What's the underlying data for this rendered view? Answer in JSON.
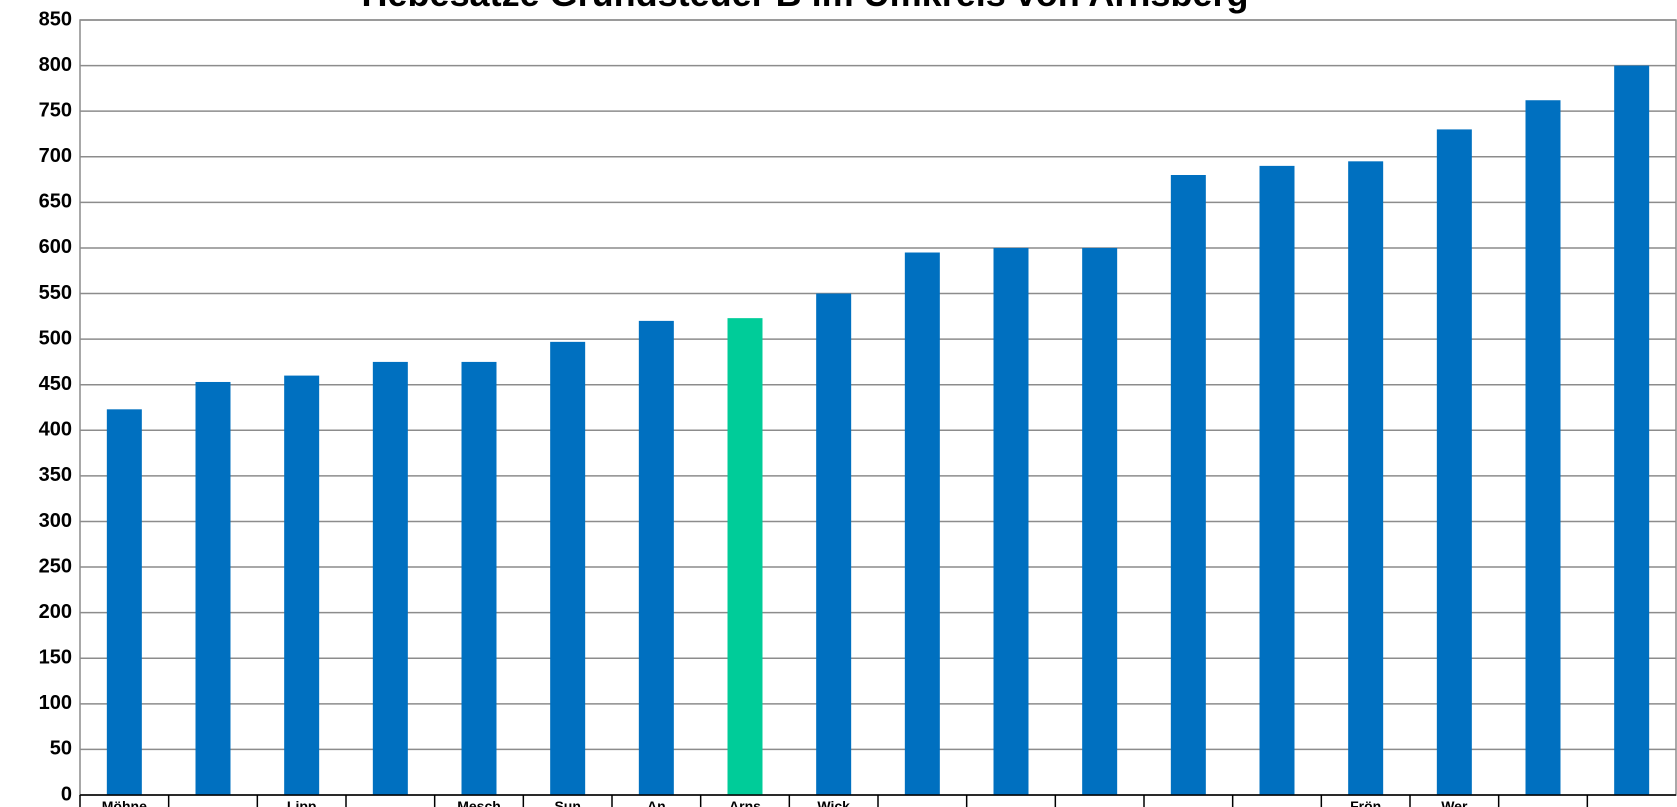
{
  "chart_data": {
    "type": "bar",
    "title": "Hebesätze Grundsteuer B im Umkreis von Arnsberg",
    "categories": [
      "Möhne",
      null,
      "Lipp",
      null,
      "Mesch",
      "Sun",
      "An",
      "Arns",
      "Wick",
      null,
      null,
      null,
      null,
      null,
      "Frön",
      "Wer",
      null,
      null
    ],
    "values": [
      423,
      453,
      460,
      475,
      475,
      497,
      520,
      523,
      550,
      595,
      600,
      600,
      680,
      690,
      695,
      730,
      762,
      800
    ],
    "colors": [
      "#0070c0",
      "#0070c0",
      "#0070c0",
      "#0070c0",
      "#0070c0",
      "#0070c0",
      "#0070c0",
      "#00cc99",
      "#0070c0",
      "#0070c0",
      "#0070c0",
      "#0070c0",
      "#0070c0",
      "#0070c0",
      "#0070c0",
      "#0070c0",
      "#0070c0",
      "#0070c0"
    ],
    "ylim": [
      0,
      850
    ],
    "yticks": [
      0,
      50,
      100,
      150,
      200,
      250,
      300,
      350,
      400,
      450,
      500,
      550,
      600,
      650,
      700,
      750,
      800,
      850
    ],
    "grid": true
  }
}
